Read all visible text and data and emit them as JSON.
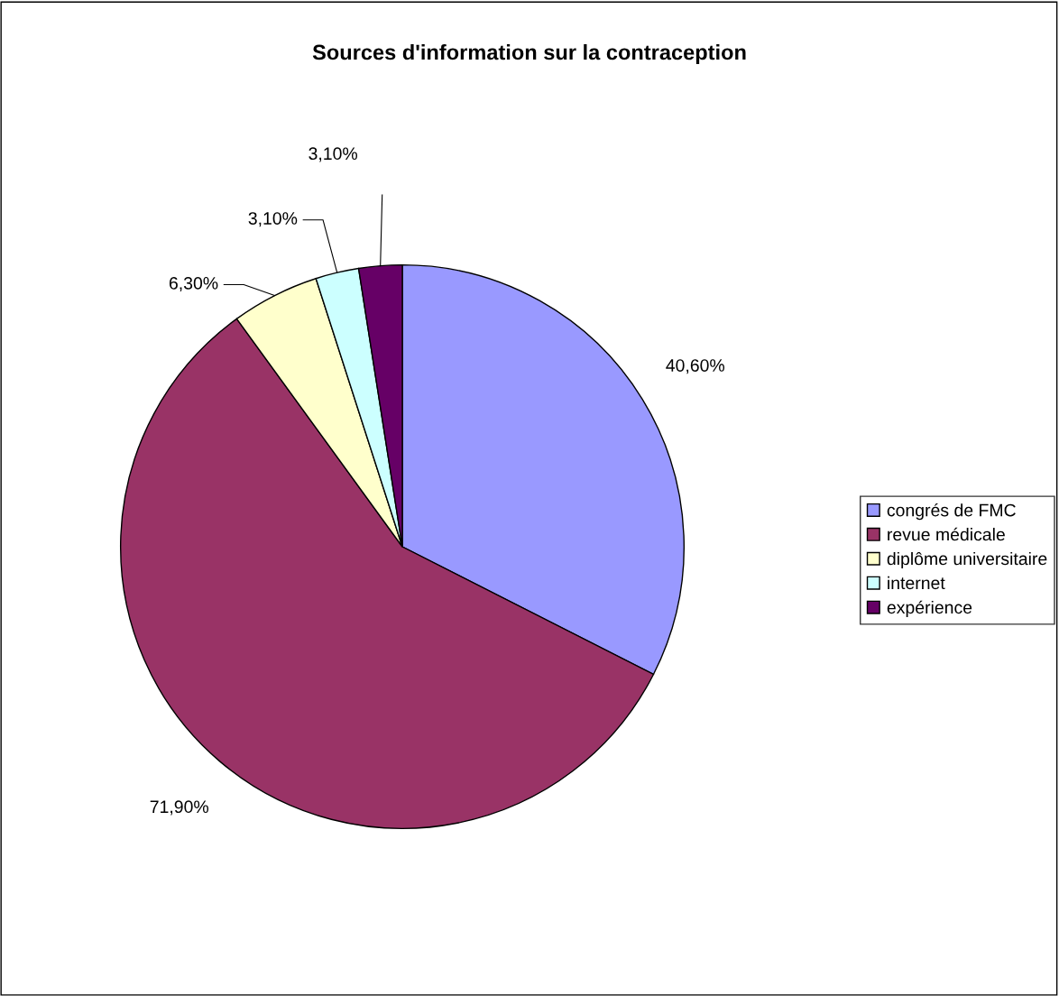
{
  "chart_data": {
    "type": "pie",
    "title": "Sources d'information sur la contraception",
    "categories": [
      "congrés de FMC",
      "revue médicale",
      "diplôme universitaire",
      "internet",
      "expérience"
    ],
    "values": [
      40.6,
      71.9,
      6.3,
      3.1,
      3.1
    ],
    "value_labels": [
      "40,60%",
      "71,90%",
      "6,30%",
      "3,10%",
      "3,10%"
    ],
    "colors": [
      "#9999ff",
      "#993366",
      "#ffffcc",
      "#ccffff",
      "#660066"
    ],
    "legend": "right"
  }
}
